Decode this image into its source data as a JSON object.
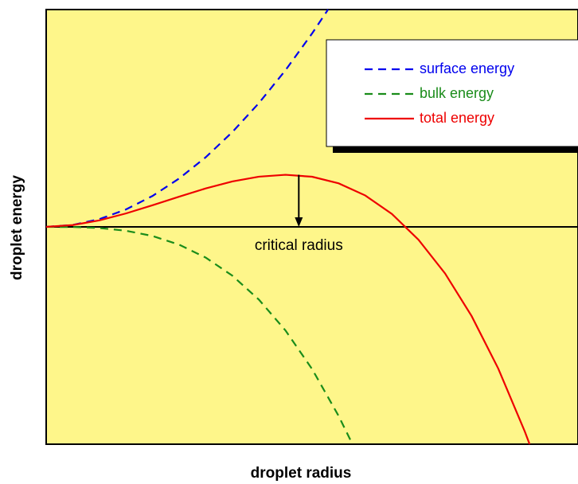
{
  "chart_data": {
    "type": "line",
    "xlabel": "droplet radius",
    "ylabel": "droplet energy",
    "xlim": [
      0,
      100
    ],
    "ylim": [
      -100,
      100
    ],
    "legend": "upper right",
    "series": [
      {
        "name": "surface energy",
        "color": "#0000ee",
        "style": "dashed",
        "x": [
          0,
          5,
          10,
          15,
          20,
          25,
          30,
          35,
          40,
          45,
          50,
          53
        ],
        "values": [
          0,
          0.89,
          3.56,
          8.01,
          14.24,
          22.25,
          32.04,
          43.61,
          56.96,
          72.09,
          89.0,
          100
        ]
      },
      {
        "name": "bulk energy",
        "color": "#1a8c1a",
        "style": "dashed",
        "x": [
          0,
          5,
          10,
          15,
          20,
          25,
          30,
          35,
          40,
          45,
          50,
          55,
          57.6
        ],
        "values": [
          0,
          -0.07,
          -0.52,
          -1.77,
          -4.19,
          -8.18,
          -14.13,
          -22.44,
          -33.49,
          -47.68,
          -65.41,
          -87.06,
          -100
        ]
      },
      {
        "name": "total energy",
        "color": "#ee0000",
        "style": "solid",
        "x": [
          0,
          5,
          10,
          15,
          20,
          25,
          30,
          35,
          40,
          45,
          50,
          55,
          60,
          65,
          70,
          75,
          80,
          85,
          90,
          90.9
        ],
        "values": [
          0,
          0.82,
          3.01,
          6.18,
          9.95,
          13.91,
          17.69,
          20.89,
          23.11,
          23.97,
          23.07,
          20.03,
          14.45,
          5.95,
          -5.88,
          -21.41,
          -41.05,
          -65.17,
          -94.18,
          -100
        ]
      }
    ],
    "annotation": {
      "text": "critical radius",
      "x": 47.5,
      "y": 23.97
    }
  }
}
